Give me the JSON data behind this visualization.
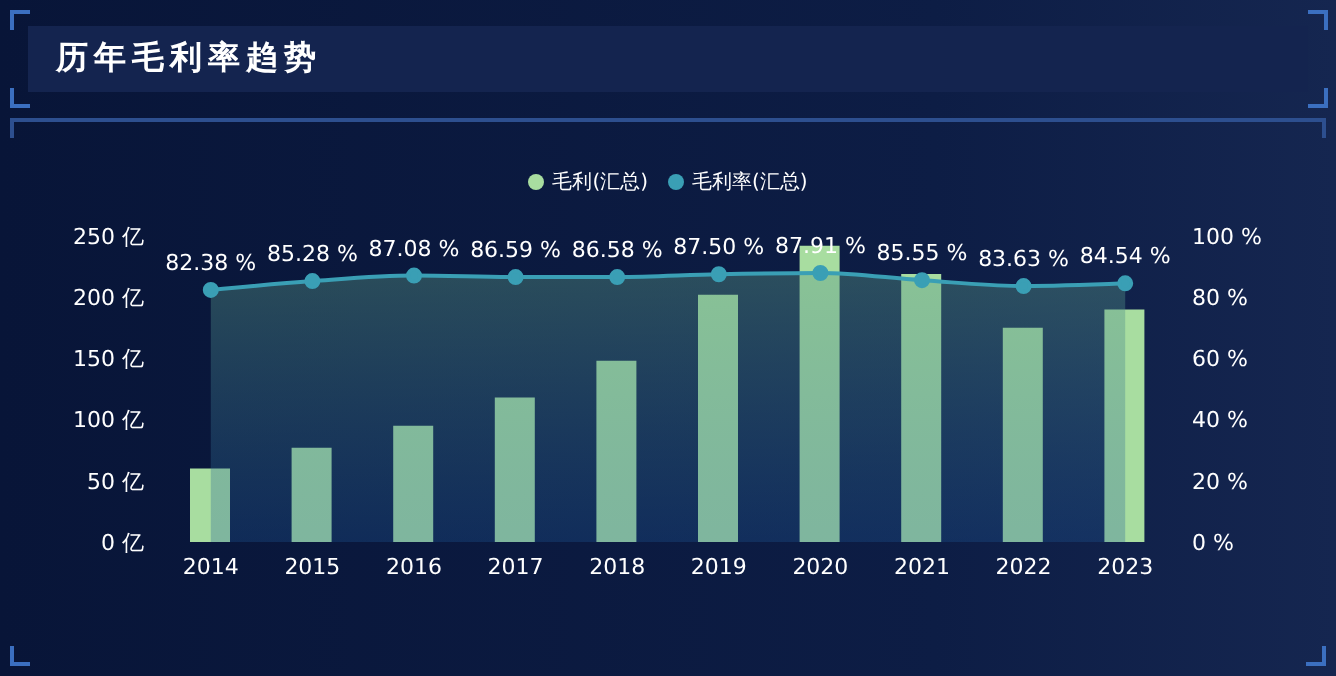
{
  "chart_data": {
    "type": "bar",
    "title": "历年毛利率趋势",
    "categories": [
      "2014",
      "2015",
      "2016",
      "2017",
      "2018",
      "2019",
      "2020",
      "2021",
      "2022",
      "2023"
    ],
    "series": [
      {
        "name": "毛利(汇总)",
        "color": "#a8dda0",
        "values": [
          60,
          77,
          95,
          118,
          148,
          202,
          242,
          219,
          175,
          190
        ]
      },
      {
        "name": "毛利率(汇总)",
        "type": "area",
        "axis": "y2",
        "color": "#3a9fb5",
        "values": [
          82.38,
          85.28,
          87.08,
          86.59,
          86.58,
          87.5,
          87.91,
          85.55,
          83.63,
          84.54
        ],
        "value_labels": [
          "82.38 %",
          "85.28 %",
          "87.08 %",
          "86.59 %",
          "86.58 %",
          "87.50 %",
          "87.91 %",
          "85.55 %",
          "83.63 %",
          "84.54 %"
        ]
      }
    ],
    "ylim": [
      0,
      250
    ],
    "yticks": [
      {
        "value": 0,
        "label": "0 亿"
      },
      {
        "value": 50,
        "label": "50 亿"
      },
      {
        "value": 100,
        "label": "100 亿"
      },
      {
        "value": 150,
        "label": "150 亿"
      },
      {
        "value": 200,
        "label": "200 亿"
      },
      {
        "value": 250,
        "label": "250 亿"
      }
    ],
    "y2lim": [
      0,
      100
    ],
    "y2ticks": [
      {
        "value": 0,
        "label": "0 %"
      },
      {
        "value": 20,
        "label": "20 %"
      },
      {
        "value": 40,
        "label": "40 %"
      },
      {
        "value": 60,
        "label": "60 %"
      },
      {
        "value": 80,
        "label": "80 %"
      },
      {
        "value": 100,
        "label": "100 %"
      }
    ],
    "legend": "top",
    "marker": "circle",
    "grid": false
  }
}
